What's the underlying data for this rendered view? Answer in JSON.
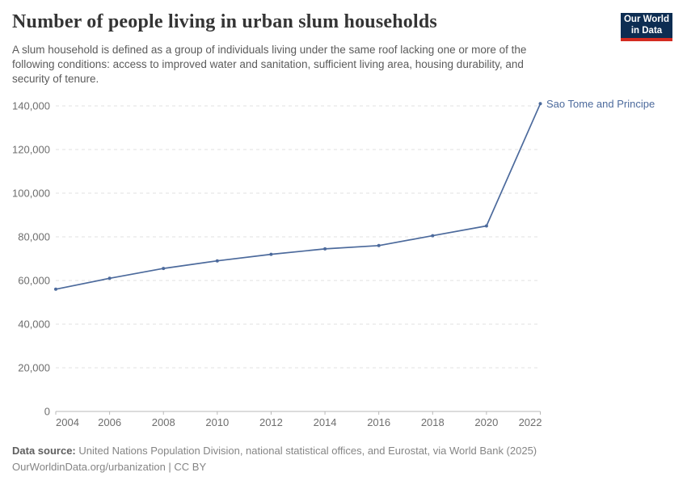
{
  "header": {
    "title": "Number of people living in urban slum households",
    "subtitle_lines": [
      "A slum household is defined as a group of individuals living under the same roof lacking one or more of the",
      "following conditions: access to improved water and sanitation, sufficient living area, housing durability, and",
      "security of tenure."
    ],
    "logo": {
      "line1": "Our World",
      "line2": "in Data"
    }
  },
  "chart_data": {
    "type": "line",
    "title": "Number of people living in urban slum households",
    "x": [
      2004,
      2006,
      2008,
      2010,
      2012,
      2014,
      2016,
      2018,
      2020,
      2022
    ],
    "series": [
      {
        "name": "Sao Tome and Principe",
        "color": "#4c6a9c",
        "values": [
          56000,
          61000,
          65500,
          69000,
          72000,
          74500,
          76000,
          80500,
          85000,
          141000
        ]
      }
    ],
    "xlabel": "",
    "ylabel": "",
    "xlim": [
      2004,
      2022
    ],
    "ylim": [
      0,
      140000
    ],
    "xticks": [
      2004,
      2006,
      2008,
      2010,
      2012,
      2014,
      2016,
      2018,
      2020,
      2022
    ],
    "yticks": [
      0,
      20000,
      40000,
      60000,
      80000,
      100000,
      120000,
      140000
    ],
    "ytick_labels": [
      "0",
      "20,000",
      "40,000",
      "60,000",
      "80,000",
      "100,000",
      "120,000",
      "140,000"
    ],
    "grid": "horizontal-dashed",
    "legend": "line-end-label",
    "markers": true
  },
  "footer": {
    "data_source_label": "Data source:",
    "data_source_text": "United Nations Population Division, national statistical offices, and Eurostat, via World Bank (2025)",
    "license_line": "OurWorldinData.org/urbanization | CC BY"
  },
  "colors": {
    "line": "#4c6a9c",
    "logo-bg": "#0d2d52",
    "logo-stripe": "#d42b20",
    "title-text": "#343434",
    "subtitle-text": "#5b5b5b",
    "tick-text": "#6e6e6e",
    "grid": "#e2e2e2",
    "axis": "#b9b9b9",
    "footer-text": "#858585",
    "footer-label": "#5f5f5f"
  }
}
